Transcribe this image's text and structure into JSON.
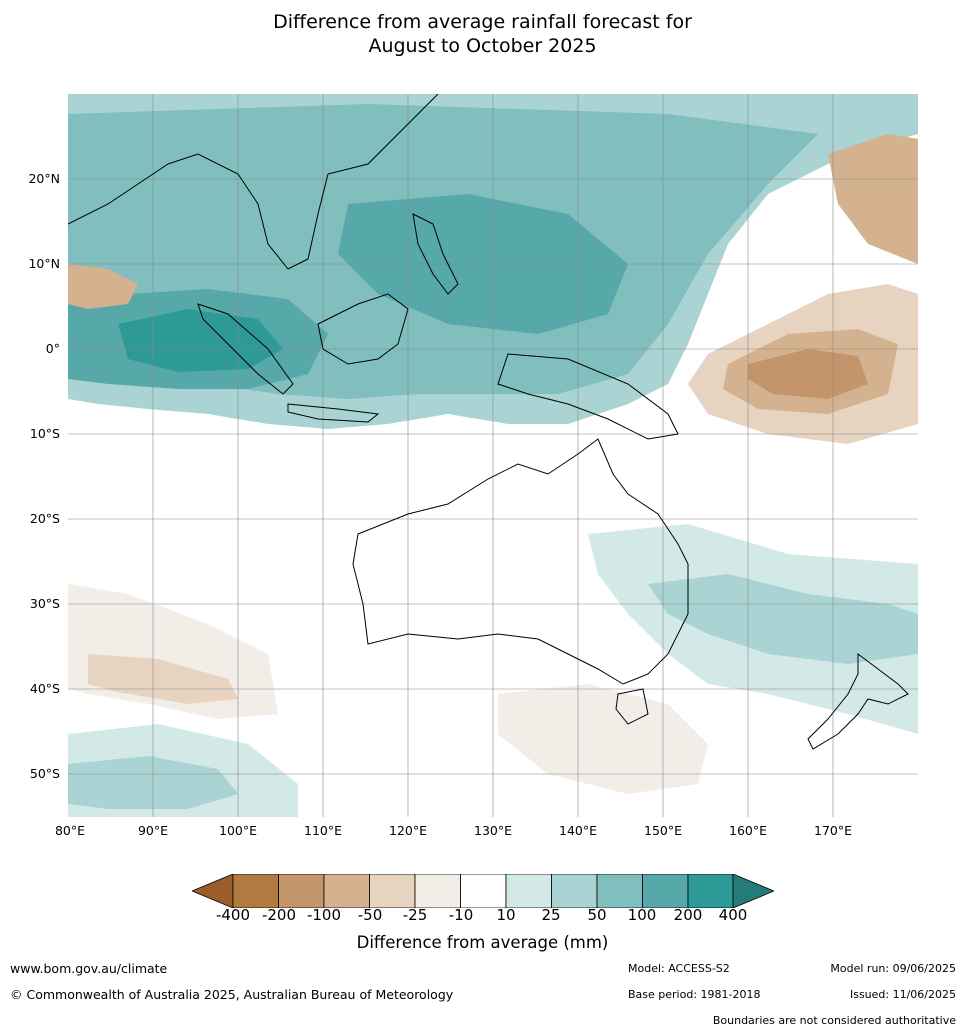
{
  "title_line1": "Difference from average rainfall forecast for",
  "title_line2": "August to October 2025",
  "lat_labels": [
    "20°N",
    "10°N",
    "0°",
    "10°S",
    "20°S",
    "30°S",
    "40°S",
    "50°S"
  ],
  "lon_labels": [
    "80°E",
    "90°E",
    "100°E",
    "110°E",
    "120°E",
    "130°E",
    "140°E",
    "150°E",
    "160°E",
    "170°E"
  ],
  "colorbar": {
    "ticks": [
      "-400",
      "-200",
      "-100",
      "-50",
      "-25",
      "-10",
      "10",
      "25",
      "50",
      "100",
      "200",
      "400"
    ],
    "colors": [
      "#9a5d2a",
      "#b07a40",
      "#c4956a",
      "#d5b28f",
      "#e6d3c0",
      "#f3ede7",
      "#ffffff",
      "#d3e9e8",
      "#a9d4d3",
      "#80bfbe",
      "#57a9a9",
      "#2e9a98",
      "#237c7a"
    ],
    "label": "Difference from average (mm)"
  },
  "footer": {
    "url": "www.bom.gov.au/climate",
    "copyright": "© Commonwealth of Australia 2025, Australian Bureau of Meteorology",
    "model": "Model: ACCESS-S2",
    "base_period": "Base period: 1981-2018",
    "model_run": "Model run: 09/06/2025",
    "issued": "Issued: 11/06/2025",
    "disclaimer": "Boundaries are not considered authoritative"
  },
  "map_data": {
    "extent": {
      "lon_min": 80,
      "lon_max": 180,
      "lat_min": -55,
      "lat_max": 30
    },
    "projection": "equirectangular",
    "gridlines": true
  }
}
